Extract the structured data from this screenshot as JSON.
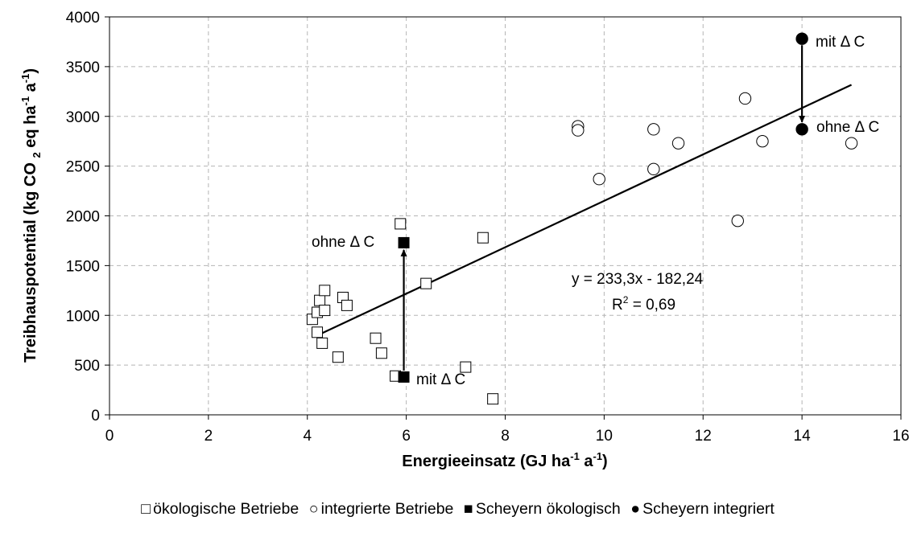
{
  "chart_data": {
    "type": "scatter",
    "xlabel": {
      "main": "Energieeinsatz (GJ ha",
      "sup1": "-1",
      "mid": " a",
      "sup2": "-1",
      "end": ")"
    },
    "ylabel": {
      "main": "Treibhauspotential (kg CO ",
      "sub": "2",
      "mid": " eq ha",
      "sup1": "-1",
      "mid2": " a",
      "sup2": "-1",
      "end": ")"
    },
    "xlim": [
      0,
      16
    ],
    "ylim": [
      0,
      4000
    ],
    "x_ticks": [
      0,
      2,
      4,
      6,
      8,
      10,
      12,
      14,
      16
    ],
    "y_ticks": [
      0,
      500,
      1000,
      1500,
      2000,
      2500,
      3000,
      3500,
      4000
    ],
    "grid": true,
    "legend_position": "bottom",
    "series": [
      {
        "name": "ökologische Betriebe",
        "marker": "square-open",
        "points": [
          {
            "x": 4.1,
            "y": 960
          },
          {
            "x": 4.2,
            "y": 1030
          },
          {
            "x": 4.2,
            "y": 830
          },
          {
            "x": 4.25,
            "y": 1150
          },
          {
            "x": 4.3,
            "y": 720
          },
          {
            "x": 4.35,
            "y": 1250
          },
          {
            "x": 4.35,
            "y": 1050
          },
          {
            "x": 4.62,
            "y": 580
          },
          {
            "x": 4.72,
            "y": 1180
          },
          {
            "x": 4.8,
            "y": 1100
          },
          {
            "x": 5.38,
            "y": 770
          },
          {
            "x": 5.5,
            "y": 620
          },
          {
            "x": 5.78,
            "y": 390
          },
          {
            "x": 5.88,
            "y": 1920
          },
          {
            "x": 6.4,
            "y": 1320
          },
          {
            "x": 7.2,
            "y": 480
          },
          {
            "x": 7.55,
            "y": 1780
          },
          {
            "x": 7.75,
            "y": 160
          }
        ]
      },
      {
        "name": "integrierte Betriebe",
        "marker": "circle-open",
        "points": [
          {
            "x": 9.47,
            "y": 2900
          },
          {
            "x": 9.47,
            "y": 2860
          },
          {
            "x": 9.9,
            "y": 2370
          },
          {
            "x": 11.0,
            "y": 2870
          },
          {
            "x": 11.0,
            "y": 2470
          },
          {
            "x": 11.5,
            "y": 2730
          },
          {
            "x": 12.7,
            "y": 1950
          },
          {
            "x": 12.85,
            "y": 3180
          },
          {
            "x": 13.2,
            "y": 2750
          },
          {
            "x": 15.0,
            "y": 2730
          }
        ]
      },
      {
        "name": "Scheyern ökologisch",
        "marker": "square-filled",
        "points": [
          {
            "x": 5.95,
            "y": 1730
          },
          {
            "x": 5.95,
            "y": 380
          }
        ]
      },
      {
        "name": "Scheyern integriert",
        "marker": "circle-filled",
        "points": [
          {
            "x": 14.0,
            "y": 3780
          },
          {
            "x": 14.0,
            "y": 2870
          }
        ]
      }
    ],
    "trendline": {
      "x_range": [
        4.2,
        15.0
      ],
      "slope": 233.3,
      "intercept": -182.24,
      "equation_label": "y = 233,3x - 182,24",
      "r2_label": {
        "main": "R",
        "sup": "2",
        "rest": " = 0,69"
      }
    },
    "arrows": [
      {
        "from": {
          "x": 5.95,
          "y": 380
        },
        "to": {
          "x": 5.95,
          "y": 1730
        }
      },
      {
        "from": {
          "x": 14.0,
          "y": 3780
        },
        "to": {
          "x": 14.0,
          "y": 2870
        }
      }
    ],
    "annotations": {
      "oeko_ohne": "ohne Δ C",
      "oeko_mit": "mit Δ C",
      "int_mit": "mit Δ C",
      "int_ohne": "ohne Δ C"
    }
  },
  "legend": [
    {
      "symbol": "□",
      "label": "ökologische Betriebe"
    },
    {
      "symbol": "○",
      "label": "integrierte Betriebe"
    },
    {
      "symbol": "■",
      "label": "Scheyern ökologisch"
    },
    {
      "symbol": "●",
      "label": "Scheyern integriert"
    }
  ]
}
